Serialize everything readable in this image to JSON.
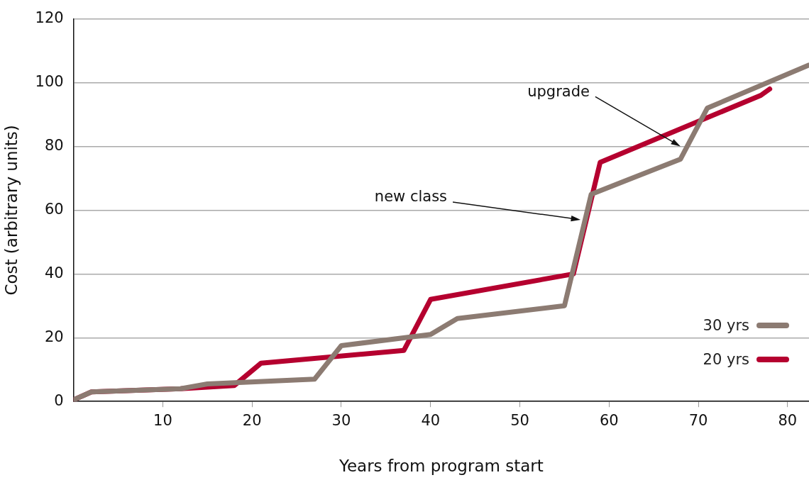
{
  "chart_data": {
    "type": "line",
    "xlabel": "Years from program start",
    "ylabel": "Cost (arbitrary units)",
    "xlim": [
      0,
      82.4
    ],
    "xticks": [
      10,
      20,
      30,
      40,
      50,
      60,
      70,
      80
    ],
    "ylim": [
      0,
      120
    ],
    "yticks": [
      0,
      20,
      40,
      60,
      80,
      100,
      120
    ],
    "grid": "y",
    "legend": "bottom right",
    "marker": "none",
    "line_style": "solid",
    "series": [
      {
        "name": "30 yrs",
        "color": "#8c7b72",
        "x": [
          0,
          2,
          12,
          15,
          27,
          30,
          40,
          43,
          55,
          58,
          68,
          71,
          82.4
        ],
        "values": [
          0.5,
          3,
          4,
          5.5,
          7,
          17.5,
          21,
          26,
          30,
          65,
          76,
          92,
          105.5
        ]
      },
      {
        "name": "20 yrs",
        "color": "#b5002f",
        "x": [
          0,
          2,
          12,
          15,
          18,
          21,
          37,
          40,
          56,
          59,
          77,
          78
        ],
        "values": [
          0.5,
          3,
          4,
          4.5,
          5,
          12,
          16,
          32,
          40,
          75,
          96,
          98
        ]
      }
    ],
    "annotations": [
      {
        "text": "upgrade",
        "x": 68,
        "y": 80
      },
      {
        "text": "new class",
        "x": 56.8,
        "y": 57
      }
    ]
  }
}
